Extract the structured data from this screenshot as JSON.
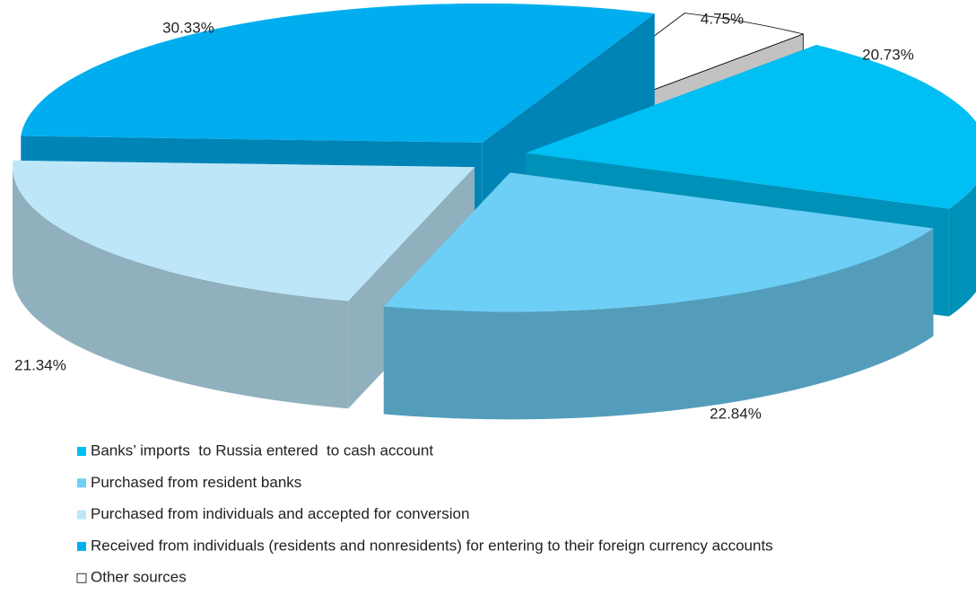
{
  "chart_data": {
    "type": "pie3d",
    "series": [
      {
        "name": "Banks’ imports  to Russia entered  to cash account",
        "color": "#00bff3",
        "values": [
          20.73
        ],
        "value_labels": [
          "20.73%"
        ]
      },
      {
        "name": "Purchased from resident banks",
        "color": "#6dcff6",
        "values": [
          22.84
        ],
        "value_labels": [
          "22.84%"
        ]
      },
      {
        "name": "Purchased from individuals and accepted for conversion",
        "color": "#bde7f9",
        "values": [
          21.34
        ],
        "value_labels": [
          "21.34%"
        ]
      },
      {
        "name": "Received from individuals (residents and nonresidents) for entering to their foreign currency accounts",
        "color": "#00aeef",
        "values": [
          30.33
        ],
        "value_labels": [
          "30.33%"
        ]
      },
      {
        "name": "Other sources",
        "color": "#ffffff",
        "values": [
          4.75
        ],
        "value_labels": [
          "4.75%"
        ]
      }
    ]
  }
}
